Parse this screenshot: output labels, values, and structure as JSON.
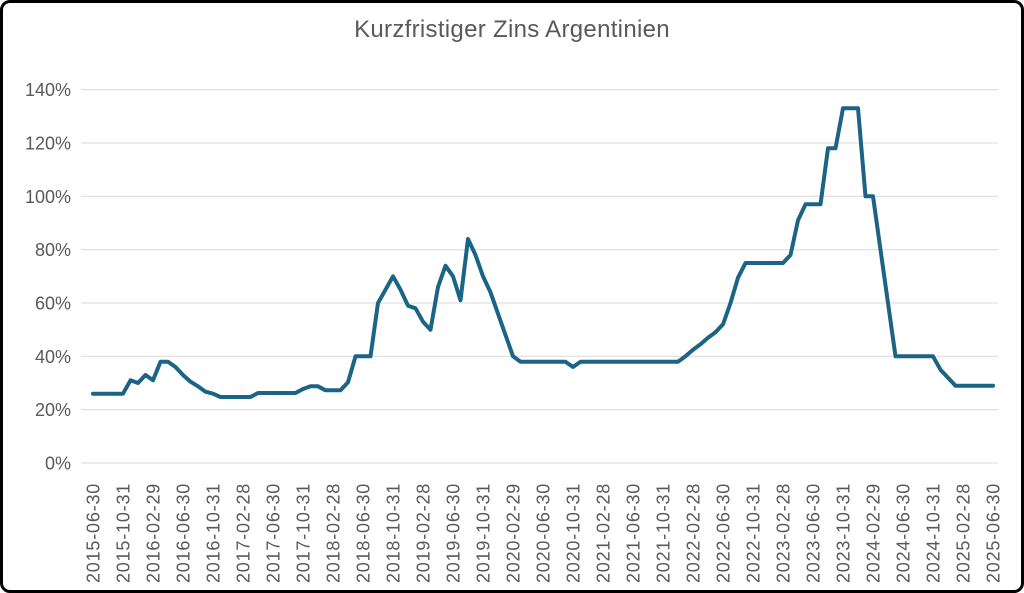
{
  "window": {
    "background": "#ffffff",
    "border_color": "#000000"
  },
  "chart_data": {
    "type": "line",
    "title": "Kurzfristiger Zins Argentinien",
    "xlabel": "",
    "ylabel": "",
    "unit": "%",
    "grid": "horizontal",
    "legend_position": "none",
    "ylim": [
      0,
      140
    ],
    "y_tick_values": [
      0,
      20,
      40,
      60,
      80,
      100,
      120,
      140
    ],
    "y_tick_labels": [
      "0%",
      "20%",
      "40%",
      "60%",
      "80%",
      "100%",
      "120%",
      "140%"
    ],
    "x_tick_labels": [
      "2015-06-30",
      "2015-10-31",
      "2016-02-29",
      "2016-06-30",
      "2016-10-31",
      "2017-02-28",
      "2017-06-30",
      "2017-10-31",
      "2018-02-28",
      "2018-06-30",
      "2018-10-31",
      "2019-02-28",
      "2019-06-30",
      "2019-10-31",
      "2020-02-29",
      "2020-06-30",
      "2020-10-31",
      "2021-02-28",
      "2021-06-30",
      "2021-10-31",
      "2022-02-28",
      "2022-06-30",
      "2022-10-31",
      "2023-02-28",
      "2023-06-30",
      "2023-10-31",
      "2024-02-29",
      "2024-06-30",
      "2024-10-31",
      "2025-02-28",
      "2025-06-30"
    ],
    "points_per_tick": 4,
    "frequency": "monthly",
    "values": [
      26,
      26,
      26,
      26,
      26,
      31,
      30,
      33,
      31,
      38,
      38,
      36,
      33,
      30.5,
      28.75,
      26.75,
      26,
      24.75,
      24.75,
      24.75,
      24.75,
      24.75,
      26.25,
      26.25,
      26.25,
      26.25,
      26.25,
      26.25,
      27.75,
      28.75,
      28.75,
      27.25,
      27.25,
      27.25,
      30.25,
      40,
      40,
      40,
      60,
      65,
      70,
      65,
      59,
      58,
      53,
      50,
      66,
      74,
      70,
      61,
      84,
      78,
      70,
      64,
      56,
      48,
      40,
      38,
      38,
      38,
      38,
      38,
      38,
      38,
      36,
      38,
      38,
      38,
      38,
      38,
      38,
      38,
      38,
      38,
      38,
      38,
      38,
      38,
      38,
      40,
      42.5,
      44.5,
      47,
      49,
      52,
      60,
      69.5,
      75,
      75,
      75,
      75,
      75,
      75,
      78,
      91,
      97,
      97,
      97,
      118,
      118,
      133,
      133,
      133,
      100,
      100,
      80,
      60,
      40,
      40,
      40,
      40,
      40,
      40,
      35,
      32,
      29,
      29,
      29,
      29,
      29,
      29
    ],
    "line_color": "#1b6486",
    "line_width": 4,
    "grid_color": "#d9d9d9",
    "text_color": "#595959"
  }
}
